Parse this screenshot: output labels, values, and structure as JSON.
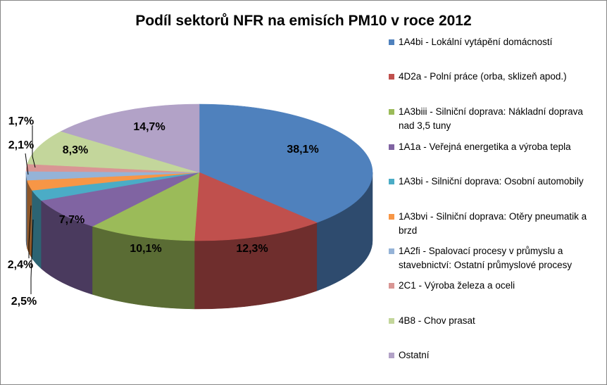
{
  "chart_data": {
    "type": "pie",
    "three_d": true,
    "title": "Podíl sektorů NFR na emisích PM10 v roce 2012",
    "legend_position": "right",
    "slices": [
      {
        "name": "1A4bi  - Lokální vytápění domácností",
        "value": 38.1,
        "label": "38,1%",
        "color": "#4F81BD"
      },
      {
        "name": "4D2a - Polní práce (orba, sklizeň apod.)",
        "value": 12.3,
        "label": "12,3%",
        "color": "#C0504D"
      },
      {
        "name": "1A3biii - Silniční doprava: Nákladní doprava nad 3,5 tuny",
        "value": 10.1,
        "label": "10,1%",
        "color": "#9BBB59"
      },
      {
        "name": "1A1a - Veřejná energetika a výroba tepla",
        "value": 7.7,
        "label": "7,7%",
        "color": "#8064A2"
      },
      {
        "name": "1A3bi - Silniční doprava: Osobní automobily",
        "value": 2.5,
        "label": "2,5%",
        "color": "#4BACC6"
      },
      {
        "name": "1A3bvi - Silniční doprava: Otěry pneumatik a brzd",
        "value": 2.4,
        "label": "2,4%",
        "color": "#F79646"
      },
      {
        "name": "1A2fi - Spalovací procesy v průmyslu a stavebnictví: Ostatní průmyslové procesy",
        "value": 2.1,
        "label": "2,1%",
        "color": "#95B3D7"
      },
      {
        "name": "2C1 - Výroba železa a oceli",
        "value": 1.7,
        "label": "1,7%",
        "color": "#D99694"
      },
      {
        "name": "4B8 - Chov prasat",
        "value": 8.3,
        "label": "8,3%",
        "color": "#C3D69B"
      },
      {
        "name": "Ostatní",
        "value": 14.7,
        "label": "14,7%",
        "color": "#B2A2C7"
      }
    ]
  }
}
